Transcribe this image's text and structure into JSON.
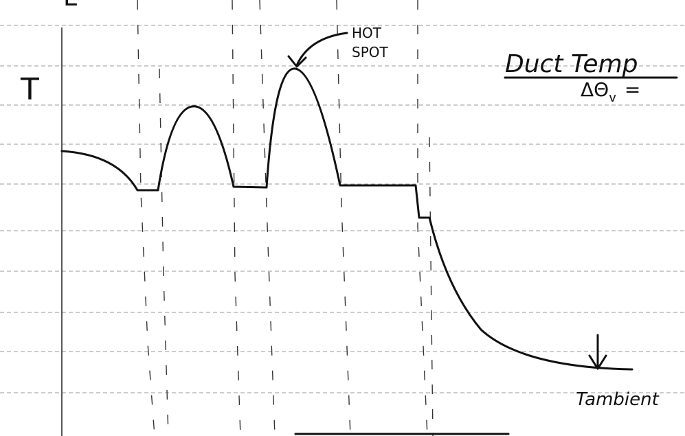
{
  "labels": {
    "corner": "L",
    "axis": "T",
    "callout": [
      "HOT",
      "SPOT"
    ],
    "title": "Duct Temp",
    "formula": {
      "symbol": "ΔΘ",
      "subscript": "v",
      "operator": "="
    },
    "ambient": "Tambient"
  }
}
